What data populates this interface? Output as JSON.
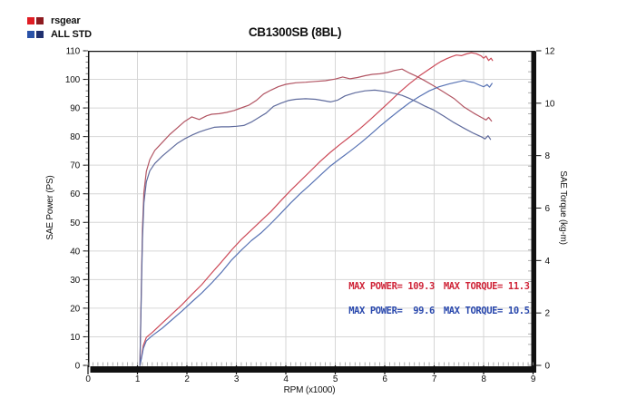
{
  "title": "CB1300SB (8BL)",
  "legend": {
    "items": [
      {
        "label": "rsgear",
        "swatches": [
          "#e01d24",
          "#8e1b20"
        ]
      },
      {
        "label": "ALL STD",
        "swatches": [
          "#2a52a8",
          "#20306f"
        ]
      }
    ]
  },
  "max_values": {
    "rsgear": {
      "max_power_ps": 109.3,
      "max_torque_kgm": 11.3
    },
    "all_std": {
      "max_power_ps": 99.6,
      "max_torque_kgm": 10.5
    }
  },
  "chart_data": {
    "type": "line",
    "title": "CB1300SB (8BL)",
    "xlabel": "RPM (x1000)",
    "ylabel_left": "SAE Power (PS)",
    "ylabel_right": "SAE Torque (kg-m)",
    "xlim": [
      0,
      9
    ],
    "ylim_left": [
      0,
      110
    ],
    "ylim_right": [
      0,
      12
    ],
    "x_ticks": [
      0,
      1,
      2,
      3,
      4,
      5,
      6,
      7,
      8,
      9
    ],
    "x_minor_step": 0.1,
    "y_ticks_left": [
      0,
      10,
      20,
      30,
      40,
      50,
      60,
      70,
      80,
      90,
      100,
      110
    ],
    "y_left_minor_step": 2,
    "y_ticks_right": [
      0,
      2,
      4,
      6,
      8,
      10,
      12
    ],
    "y_right_minor_step": 0.4,
    "grid": true,
    "legend_position": "top-left",
    "series": [
      {
        "name": "rsgear power",
        "axis": "left",
        "unit": "PS",
        "color": "#cc4a58",
        "points": [
          [
            1.05,
            0
          ],
          [
            1.08,
            3
          ],
          [
            1.12,
            7
          ],
          [
            1.18,
            9.8
          ],
          [
            1.3,
            11.5
          ],
          [
            1.5,
            14.8
          ],
          [
            1.7,
            18
          ],
          [
            1.9,
            21.2
          ],
          [
            2.1,
            24.8
          ],
          [
            2.3,
            28.2
          ],
          [
            2.5,
            32.3
          ],
          [
            2.7,
            36.2
          ],
          [
            2.9,
            40.3
          ],
          [
            3.1,
            44
          ],
          [
            3.3,
            47.3
          ],
          [
            3.5,
            50.6
          ],
          [
            3.7,
            53.8
          ],
          [
            3.9,
            57.6
          ],
          [
            4.1,
            61.2
          ],
          [
            4.3,
            64.6
          ],
          [
            4.5,
            68
          ],
          [
            4.7,
            71.4
          ],
          [
            4.9,
            74.5
          ],
          [
            5.1,
            77.3
          ],
          [
            5.3,
            80
          ],
          [
            5.5,
            82.8
          ],
          [
            5.7,
            85.8
          ],
          [
            5.9,
            89
          ],
          [
            6.1,
            92.2
          ],
          [
            6.3,
            95.5
          ],
          [
            6.5,
            98.5
          ],
          [
            6.7,
            101.2
          ],
          [
            6.9,
            103.6
          ],
          [
            7.05,
            105.3
          ],
          [
            7.15,
            106.4
          ],
          [
            7.25,
            107.2
          ],
          [
            7.35,
            107.9
          ],
          [
            7.45,
            108.5
          ],
          [
            7.55,
            108.3
          ],
          [
            7.65,
            108.9
          ],
          [
            7.75,
            109.3
          ],
          [
            7.85,
            109.0
          ],
          [
            7.95,
            108.2
          ],
          [
            8.0,
            107.4
          ],
          [
            8.05,
            108.1
          ],
          [
            8.1,
            106.6
          ],
          [
            8.15,
            107.4
          ],
          [
            8.18,
            106.6
          ]
        ]
      },
      {
        "name": "rsgear torque",
        "axis": "right",
        "unit": "kg-m",
        "color": "#b25563",
        "points": [
          [
            1.05,
            0
          ],
          [
            1.08,
            3.2
          ],
          [
            1.1,
            5.2
          ],
          [
            1.13,
            6.6
          ],
          [
            1.18,
            7.4
          ],
          [
            1.25,
            7.85
          ],
          [
            1.35,
            8.2
          ],
          [
            1.5,
            8.5
          ],
          [
            1.65,
            8.8
          ],
          [
            1.8,
            9.05
          ],
          [
            1.95,
            9.3
          ],
          [
            2.1,
            9.48
          ],
          [
            2.25,
            9.38
          ],
          [
            2.4,
            9.52
          ],
          [
            2.5,
            9.58
          ],
          [
            2.65,
            9.6
          ],
          [
            2.8,
            9.65
          ],
          [
            2.95,
            9.72
          ],
          [
            3.1,
            9.82
          ],
          [
            3.25,
            9.92
          ],
          [
            3.4,
            10.1
          ],
          [
            3.55,
            10.35
          ],
          [
            3.7,
            10.5
          ],
          [
            3.85,
            10.63
          ],
          [
            4.0,
            10.72
          ],
          [
            4.2,
            10.78
          ],
          [
            4.4,
            10.8
          ],
          [
            4.6,
            10.83
          ],
          [
            4.8,
            10.86
          ],
          [
            5.0,
            10.92
          ],
          [
            5.15,
            11.0
          ],
          [
            5.3,
            10.93
          ],
          [
            5.45,
            10.98
          ],
          [
            5.6,
            11.05
          ],
          [
            5.75,
            11.1
          ],
          [
            5.9,
            11.12
          ],
          [
            6.05,
            11.17
          ],
          [
            6.2,
            11.25
          ],
          [
            6.35,
            11.3
          ],
          [
            6.5,
            11.15
          ],
          [
            6.65,
            11.02
          ],
          [
            6.8,
            10.87
          ],
          [
            7.0,
            10.65
          ],
          [
            7.2,
            10.42
          ],
          [
            7.4,
            10.18
          ],
          [
            7.6,
            9.86
          ],
          [
            7.8,
            9.62
          ],
          [
            7.95,
            9.46
          ],
          [
            8.05,
            9.36
          ],
          [
            8.1,
            9.46
          ],
          [
            8.16,
            9.32
          ]
        ]
      },
      {
        "name": "ALL STD power",
        "axis": "left",
        "unit": "PS",
        "color": "#5873b4",
        "points": [
          [
            1.05,
            0
          ],
          [
            1.08,
            2.5
          ],
          [
            1.12,
            6
          ],
          [
            1.18,
            8.6
          ],
          [
            1.3,
            10.4
          ],
          [
            1.5,
            13
          ],
          [
            1.7,
            16
          ],
          [
            1.9,
            19
          ],
          [
            2.1,
            22.2
          ],
          [
            2.3,
            25.3
          ],
          [
            2.5,
            28.8
          ],
          [
            2.7,
            32.6
          ],
          [
            2.9,
            36.8
          ],
          [
            3.1,
            40.3
          ],
          [
            3.3,
            43.6
          ],
          [
            3.5,
            46.3
          ],
          [
            3.7,
            49.6
          ],
          [
            3.9,
            53.2
          ],
          [
            4.1,
            56.8
          ],
          [
            4.3,
            60.2
          ],
          [
            4.5,
            63.3
          ],
          [
            4.7,
            66.5
          ],
          [
            4.9,
            69.7
          ],
          [
            5.1,
            72.3
          ],
          [
            5.3,
            74.9
          ],
          [
            5.5,
            77.6
          ],
          [
            5.7,
            80.5
          ],
          [
            5.9,
            83.6
          ],
          [
            6.1,
            86.4
          ],
          [
            6.3,
            89.2
          ],
          [
            6.5,
            91.8
          ],
          [
            6.7,
            94
          ],
          [
            6.9,
            96
          ],
          [
            7.1,
            97.4
          ],
          [
            7.3,
            98.4
          ],
          [
            7.45,
            99
          ],
          [
            7.6,
            99.6
          ],
          [
            7.7,
            99.2
          ],
          [
            7.8,
            98.9
          ],
          [
            7.9,
            98.1
          ],
          [
            8.0,
            97.4
          ],
          [
            8.07,
            98.2
          ],
          [
            8.12,
            97.3
          ],
          [
            8.17,
            98.6
          ]
        ]
      },
      {
        "name": "ALL STD torque",
        "axis": "right",
        "unit": "kg-m",
        "color": "#5f6b9d",
        "points": [
          [
            1.05,
            0
          ],
          [
            1.08,
            3.0
          ],
          [
            1.1,
            4.8
          ],
          [
            1.13,
            6.2
          ],
          [
            1.18,
            7.0
          ],
          [
            1.25,
            7.42
          ],
          [
            1.35,
            7.7
          ],
          [
            1.5,
            7.98
          ],
          [
            1.65,
            8.22
          ],
          [
            1.8,
            8.46
          ],
          [
            1.95,
            8.64
          ],
          [
            2.1,
            8.78
          ],
          [
            2.25,
            8.9
          ],
          [
            2.4,
            9.0
          ],
          [
            2.55,
            9.08
          ],
          [
            2.7,
            9.1
          ],
          [
            2.85,
            9.1
          ],
          [
            3.0,
            9.12
          ],
          [
            3.15,
            9.15
          ],
          [
            3.3,
            9.28
          ],
          [
            3.45,
            9.45
          ],
          [
            3.6,
            9.62
          ],
          [
            3.75,
            9.88
          ],
          [
            3.9,
            10.0
          ],
          [
            4.05,
            10.1
          ],
          [
            4.2,
            10.15
          ],
          [
            4.4,
            10.17
          ],
          [
            4.6,
            10.15
          ],
          [
            4.75,
            10.1
          ],
          [
            4.9,
            10.05
          ],
          [
            5.05,
            10.12
          ],
          [
            5.2,
            10.28
          ],
          [
            5.4,
            10.4
          ],
          [
            5.6,
            10.47
          ],
          [
            5.8,
            10.5
          ],
          [
            6.0,
            10.45
          ],
          [
            6.2,
            10.37
          ],
          [
            6.35,
            10.3
          ],
          [
            6.5,
            10.18
          ],
          [
            6.65,
            10.05
          ],
          [
            6.8,
            9.9
          ],
          [
            7.0,
            9.73
          ],
          [
            7.2,
            9.5
          ],
          [
            7.4,
            9.26
          ],
          [
            7.6,
            9.05
          ],
          [
            7.8,
            8.85
          ],
          [
            7.95,
            8.72
          ],
          [
            8.03,
            8.64
          ],
          [
            8.09,
            8.76
          ],
          [
            8.14,
            8.62
          ]
        ]
      }
    ],
    "annotations": [
      {
        "text": "MAX POWER= 109.3",
        "color": "#cf2438",
        "x": 5.27,
        "y": 26.6
      },
      {
        "text": "MAX TORQUE= 11.3",
        "color": "#cf2438",
        "x": 7.19,
        "y": 26.6
      },
      {
        "text": "MAX POWER=  99.6",
        "color": "#2948ad",
        "x": 5.27,
        "y": 18.1
      },
      {
        "text": "MAX TORQUE= 10.5",
        "color": "#2948ad",
        "x": 7.19,
        "y": 18.1
      }
    ],
    "style": {
      "grid_color": "#d6d6d6",
      "axis_color": "#111111",
      "minor_tick_color": "#9a9a9a",
      "label_color": "#111111"
    }
  }
}
